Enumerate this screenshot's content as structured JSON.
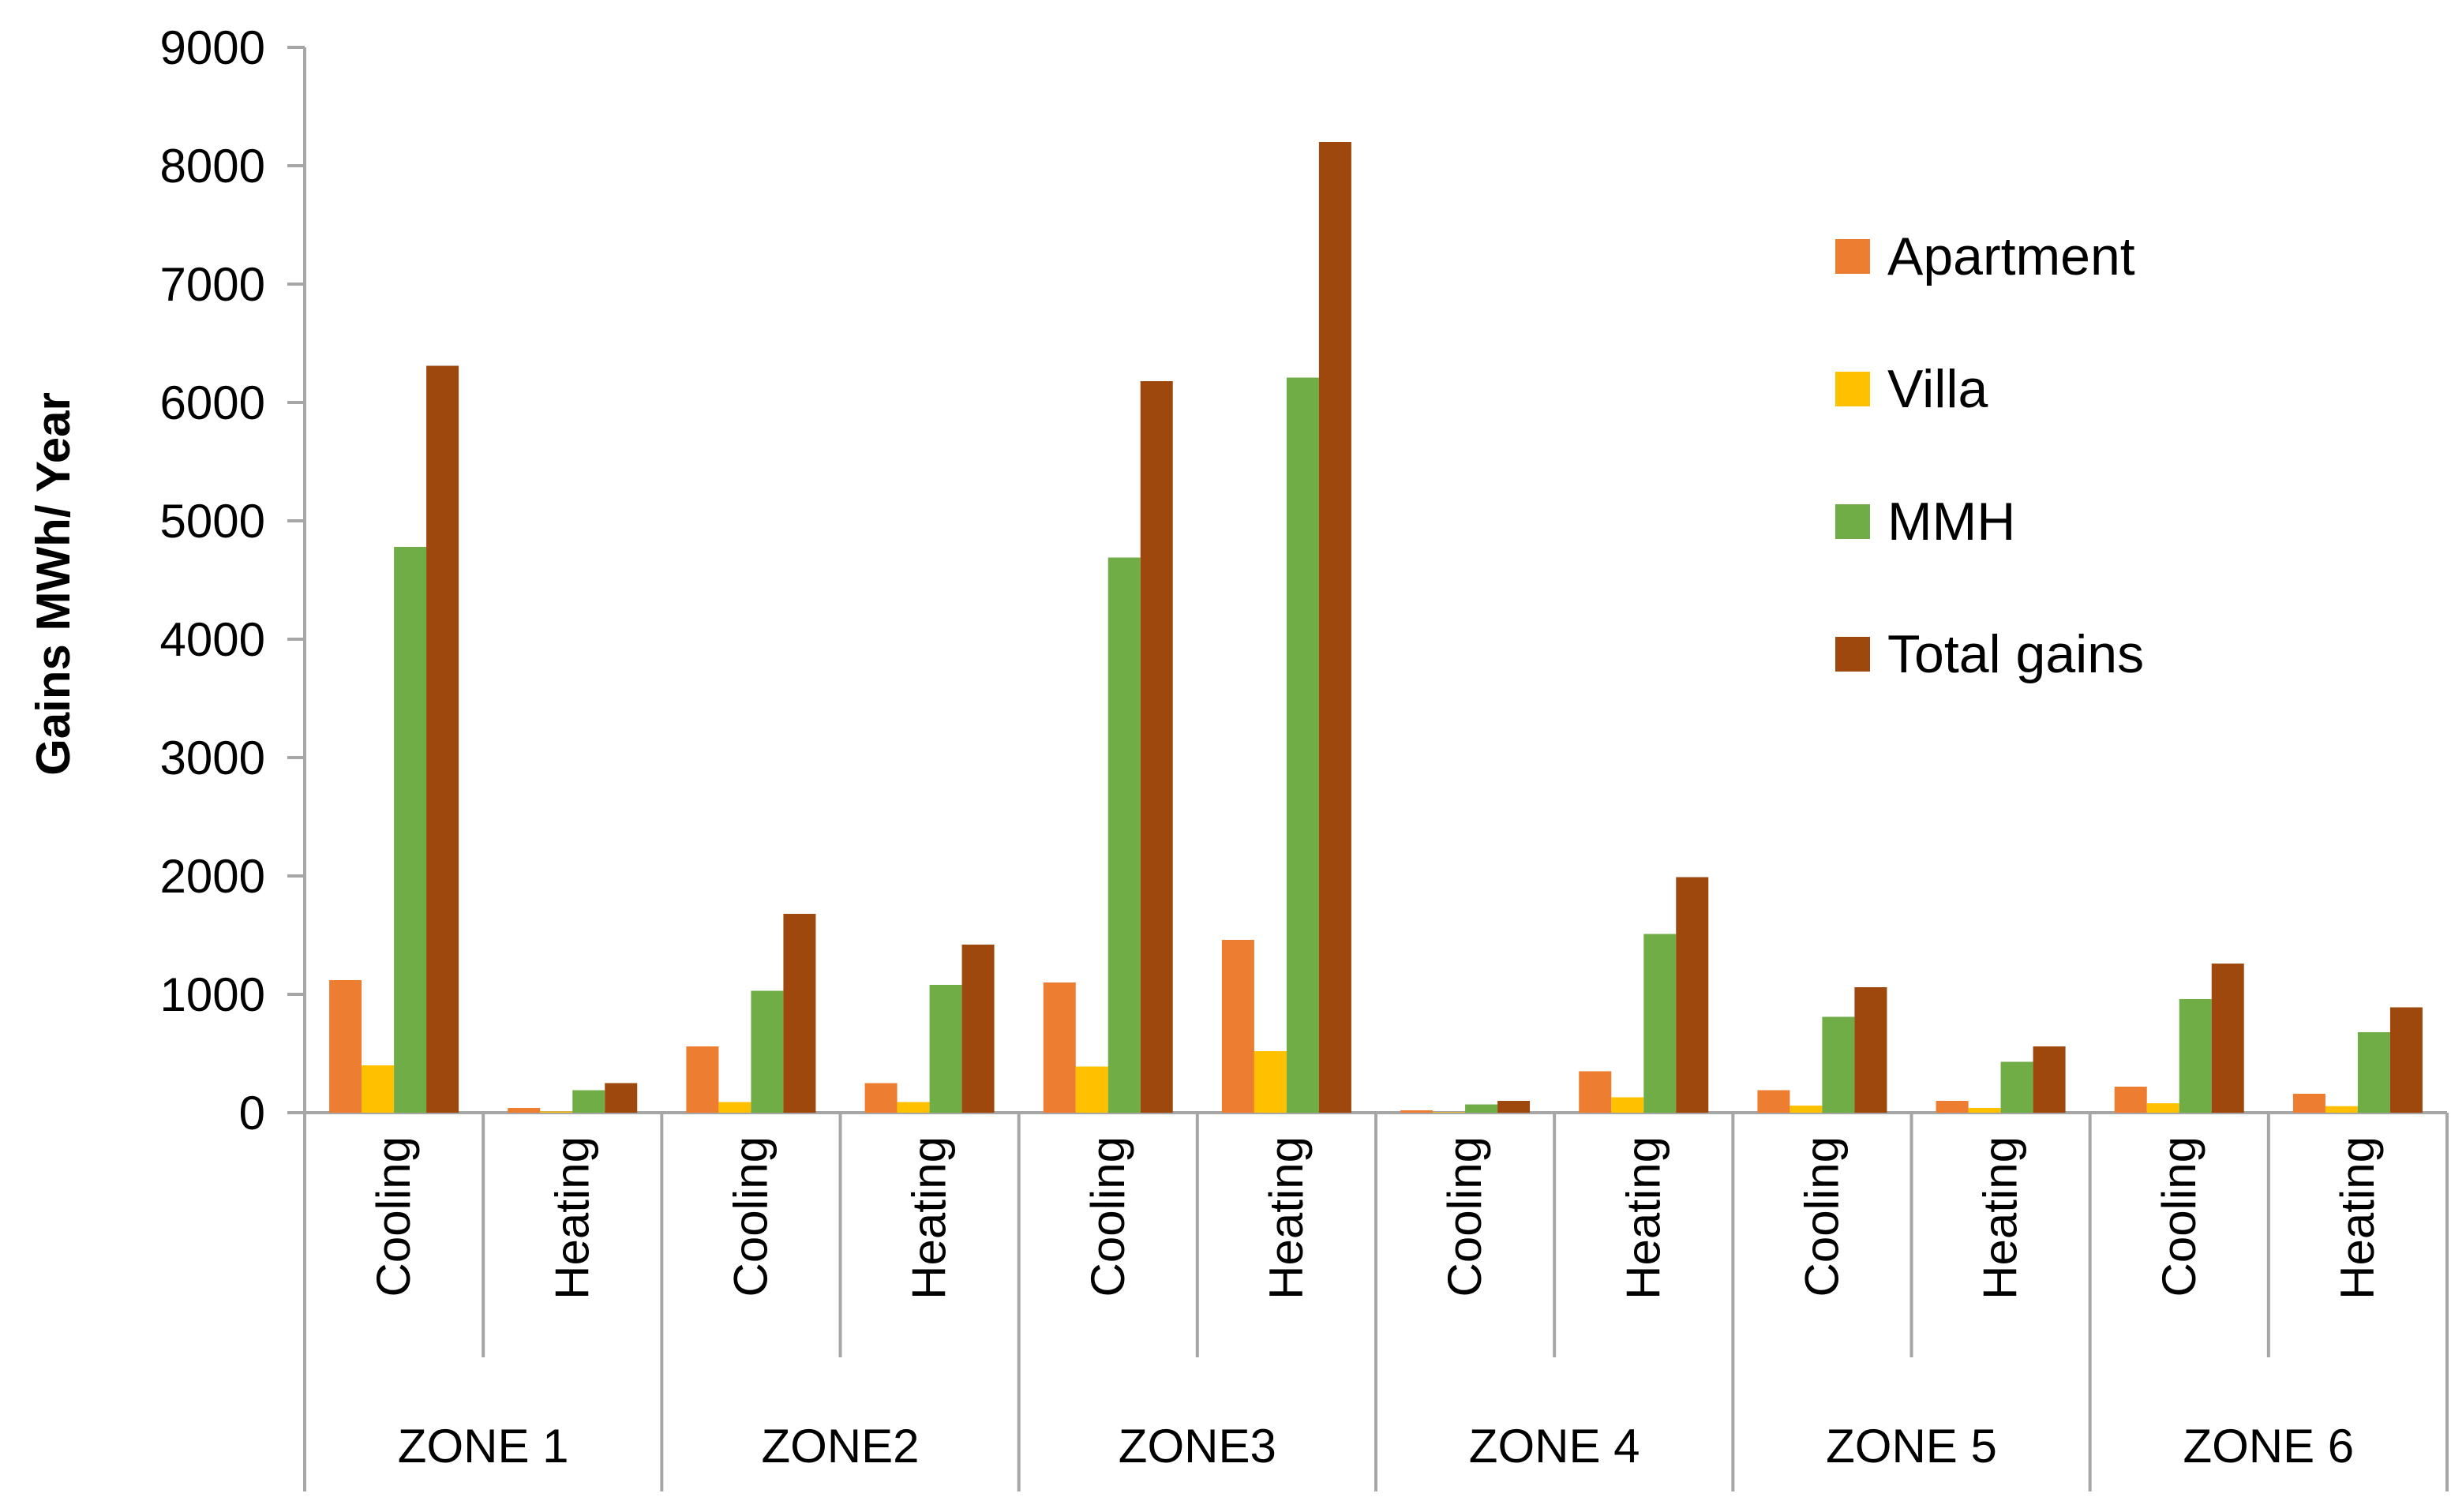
{
  "chart_data": {
    "type": "bar",
    "title": "",
    "xlabel": "",
    "ylabel": "Gains MWh/ Year",
    "ylim": [
      0,
      9000
    ],
    "yticks": [
      0,
      1000,
      2000,
      3000,
      4000,
      5000,
      6000,
      7000,
      8000,
      9000
    ],
    "grid": false,
    "legend_position": "right",
    "groups": [
      "ZONE 1",
      "ZONE2",
      "ZONE3",
      "ZONE 4",
      "ZONE 5",
      "ZONE 6"
    ],
    "categories": [
      "Cooling",
      "Heating",
      "Cooling",
      "Heating",
      "Cooling",
      "Heating",
      "Cooling",
      "Heating",
      "Cooling",
      "Heating",
      "Cooling",
      "Heating"
    ],
    "series": [
      {
        "name": "Apartment",
        "color": "#ED7D31",
        "values": [
          1120,
          40,
          560,
          250,
          1100,
          1460,
          20,
          350,
          190,
          100,
          220,
          160
        ]
      },
      {
        "name": "Villa",
        "color": "#FFC000",
        "values": [
          400,
          10,
          90,
          90,
          390,
          520,
          5,
          130,
          60,
          40,
          80,
          55
        ]
      },
      {
        "name": "MMH",
        "color": "#70AD47",
        "values": [
          4780,
          190,
          1030,
          1080,
          4690,
          6210,
          70,
          1510,
          810,
          430,
          960,
          680
        ]
      },
      {
        "name": "Total gains",
        "color": "#9E480E",
        "values": [
          6310,
          250,
          1680,
          1420,
          6180,
          8200,
          100,
          1990,
          1060,
          560,
          1260,
          890
        ]
      }
    ]
  }
}
